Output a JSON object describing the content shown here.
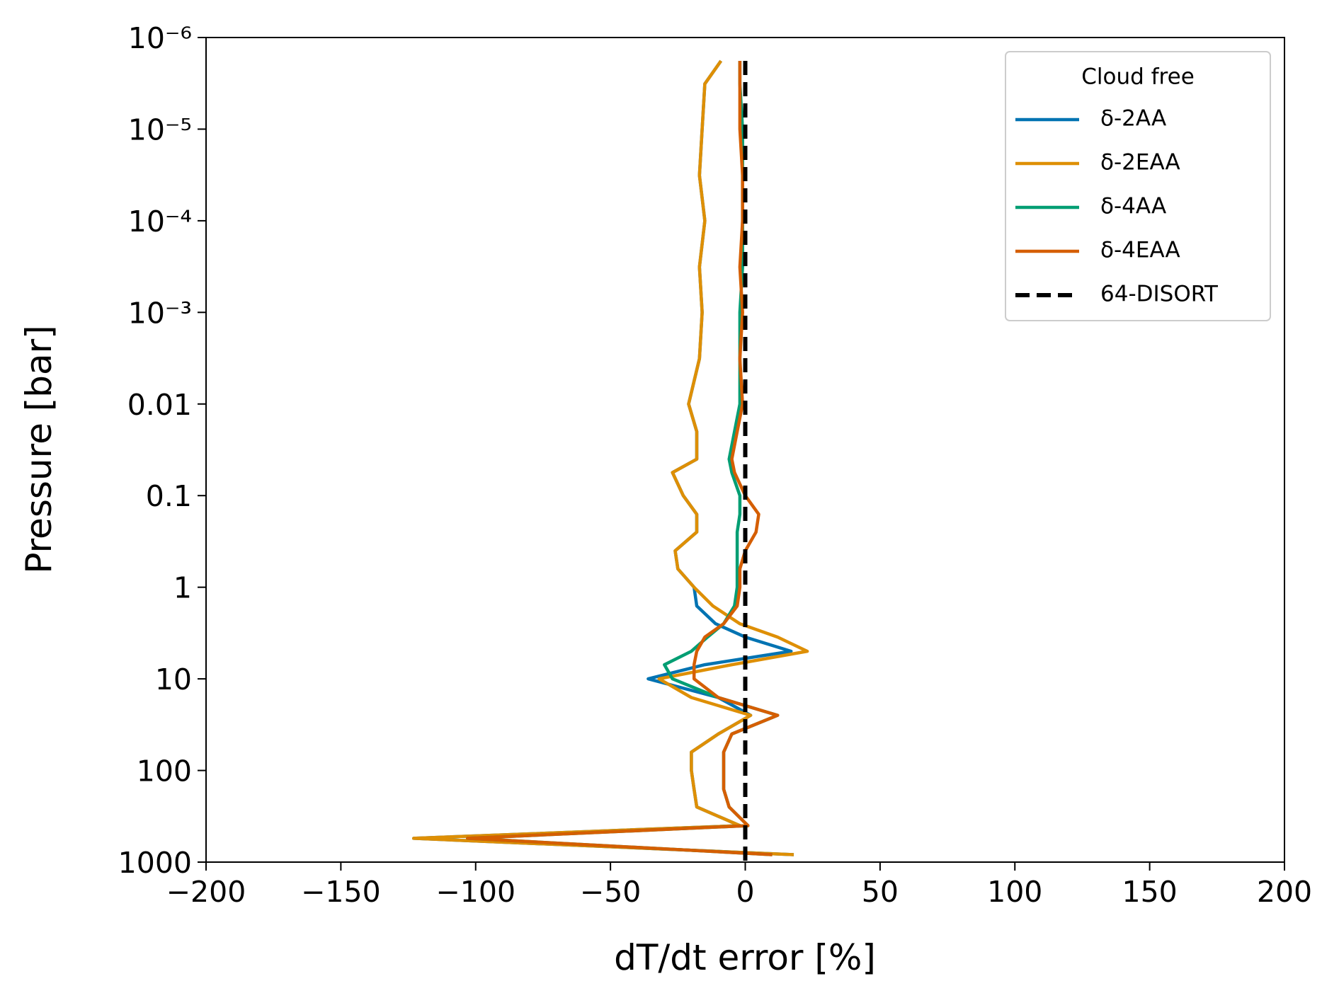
{
  "chart_data": {
    "type": "line",
    "xlabel": "dT/dt error [%]",
    "ylabel": "Pressure [bar]",
    "xlim": [
      -200,
      200
    ],
    "xticks": [
      {
        "value": -200,
        "label": "−200"
      },
      {
        "value": -150,
        "label": "−150"
      },
      {
        "value": -100,
        "label": "−100"
      },
      {
        "value": -50,
        "label": "−50"
      },
      0,
      50,
      100,
      150,
      200
    ],
    "ylim": [
      1000,
      1e-06
    ],
    "yscale": "log",
    "yticks": [
      {
        "value": 1e-06,
        "label": "10⁻⁶"
      },
      {
        "value": 1e-05,
        "label": "10⁻⁵"
      },
      {
        "value": 0.0001,
        "label": "10⁻⁴"
      },
      {
        "value": 0.001,
        "label": "10⁻³"
      },
      0.01,
      0.1,
      1,
      10,
      100,
      1000
    ],
    "legend": {
      "title": "Cloud free",
      "loc": "upper right"
    },
    "y": [
      1.8e-06,
      3.2e-06,
      1e-05,
      3.2e-05,
      0.0001,
      0.00032,
      0.001,
      0.0032,
      0.01,
      0.02,
      0.04,
      0.056,
      0.1,
      0.16,
      0.25,
      0.4,
      0.63,
      1,
      1.6,
      2.5,
      3.5,
      5,
      7,
      10,
      16,
      25,
      40,
      63,
      100,
      160,
      250,
      400,
      550,
      830
    ],
    "series": [
      {
        "name": "δ-2AA",
        "color": "#0173b2",
        "values": [
          -9,
          -15,
          -16,
          -17,
          -15,
          -17,
          -16,
          -17,
          -21,
          -18,
          -18,
          -27,
          -23,
          -18,
          -18,
          -26,
          -25,
          -19,
          -18,
          -11,
          0,
          17,
          -15,
          -36,
          -10,
          2,
          -10,
          -20,
          -20,
          -19,
          -18,
          -2,
          -123,
          18
        ]
      },
      {
        "name": "δ-2EAA",
        "color": "#de8f05",
        "values": [
          -9,
          -15,
          -16,
          -17,
          -15,
          -17,
          -16,
          -17,
          -21,
          -18,
          -18,
          -27,
          -23,
          -18,
          -18,
          -26,
          -25,
          -19,
          -12,
          -2,
          12,
          23,
          -5,
          -32,
          -20,
          2,
          -10,
          -20,
          -20,
          -19,
          -18,
          -2,
          -123,
          18
        ]
      },
      {
        "name": "δ-4AA",
        "color": "#029e73",
        "values": [
          -2,
          -2,
          -1,
          -1,
          -1,
          -1,
          -2,
          -2,
          -2,
          -4,
          -6,
          -5,
          -2,
          -2,
          -3,
          -3,
          -3,
          -3,
          -4,
          -8,
          -14,
          -20,
          -30,
          -27,
          -10,
          12,
          -5,
          -8,
          -8,
          -8,
          -6,
          1,
          -103,
          10
        ]
      },
      {
        "name": "δ-4EAA",
        "color": "#d55e00",
        "values": [
          -2,
          -2,
          -2,
          -1,
          -1,
          -2,
          -1,
          -2,
          -1,
          -3,
          -5,
          -4,
          0,
          5,
          4,
          0,
          -2,
          -2,
          -3,
          -8,
          -15,
          -18,
          -19,
          -19,
          -10,
          12,
          -5,
          -8,
          -8,
          -8,
          -6,
          1,
          -103,
          10
        ]
      },
      {
        "name": "64-DISORT",
        "color": "#000000",
        "dashed": true,
        "y": [
          1.8e-06,
          1000
        ],
        "values": [
          0,
          0
        ]
      }
    ]
  }
}
